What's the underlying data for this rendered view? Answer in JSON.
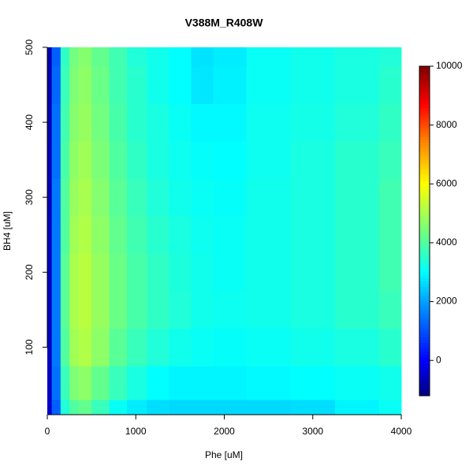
{
  "chart_data": {
    "type": "heatmap",
    "title": "V388M_R408W",
    "x_label": "Phe [uM]",
    "y_label": "BH4 [uM]",
    "x": [
      0,
      100,
      200,
      300,
      400,
      600,
      800,
      1000,
      1250,
      1500,
      1750,
      2000,
      2500,
      3000,
      3500,
      4000
    ],
    "y": [
      10,
      50,
      100,
      150,
      200,
      250,
      300,
      350,
      400,
      450,
      500
    ],
    "z": [
      [
        -500,
        1200,
        3400,
        4000,
        4200,
        3700,
        3100,
        2800,
        2650,
        2600,
        2600,
        2600,
        2600,
        2650,
        2900,
        3100
      ],
      [
        -550,
        1400,
        3700,
        4500,
        4700,
        4200,
        3700,
        3300,
        3000,
        2900,
        2900,
        2900,
        2950,
        3000,
        3100,
        3200
      ],
      [
        -600,
        1500,
        4000,
        4900,
        5100,
        4700,
        4100,
        3700,
        3400,
        3200,
        3100,
        3050,
        3100,
        3200,
        3300,
        3500
      ],
      [
        -600,
        1500,
        4100,
        5000,
        5200,
        4800,
        4300,
        3900,
        3600,
        3400,
        3200,
        3150,
        3200,
        3300,
        3500,
        3700
      ],
      [
        -600,
        1500,
        4100,
        5000,
        5200,
        4800,
        4300,
        3900,
        3600,
        3350,
        3200,
        3100,
        3200,
        3300,
        3500,
        3800
      ],
      [
        -600,
        1500,
        4000,
        4900,
        5100,
        4700,
        4200,
        3800,
        3500,
        3300,
        3150,
        3100,
        3200,
        3300,
        3500,
        3800
      ],
      [
        -650,
        1500,
        4000,
        4800,
        5000,
        4600,
        4100,
        3700,
        3400,
        3200,
        3100,
        3050,
        3200,
        3300,
        3500,
        3800
      ],
      [
        -650,
        1400,
        3900,
        4700,
        4900,
        4500,
        4000,
        3600,
        3300,
        3150,
        3050,
        3000,
        3150,
        3300,
        3500,
        3700
      ],
      [
        -700,
        1400,
        3800,
        4600,
        4800,
        4400,
        3900,
        3500,
        3300,
        3100,
        2950,
        2950,
        3150,
        3250,
        3400,
        3600
      ],
      [
        -700,
        1300,
        3700,
        4500,
        4700,
        4300,
        3800,
        3500,
        3200,
        3000,
        2750,
        2850,
        3100,
        3200,
        3300,
        3500
      ],
      [
        -700,
        1200,
        3600,
        4400,
        4600,
        4200,
        3800,
        3400,
        3200,
        3000,
        2700,
        2800,
        3100,
        3200,
        3300,
        3400
      ]
    ],
    "xlim": [
      0,
      4000
    ],
    "ylim": [
      10,
      500
    ],
    "xticks": [
      0,
      1000,
      2000,
      3000,
      4000
    ],
    "yticks": [
      100,
      200,
      300,
      400,
      500
    ],
    "zlim": [
      -1200,
      10000
    ],
    "zticks": [
      0,
      2000,
      4000,
      6000,
      8000,
      10000
    ],
    "colorscale": [
      [
        -1200,
        "#00007f"
      ],
      [
        0,
        "#0000ff"
      ],
      [
        2000,
        "#00a0ff"
      ],
      [
        3000,
        "#00ffff"
      ],
      [
        4000,
        "#50ff9f"
      ],
      [
        6000,
        "#ffff00"
      ],
      [
        7500,
        "#ff7f00"
      ],
      [
        8700,
        "#ff0000"
      ],
      [
        10000,
        "#7f0000"
      ]
    ]
  }
}
